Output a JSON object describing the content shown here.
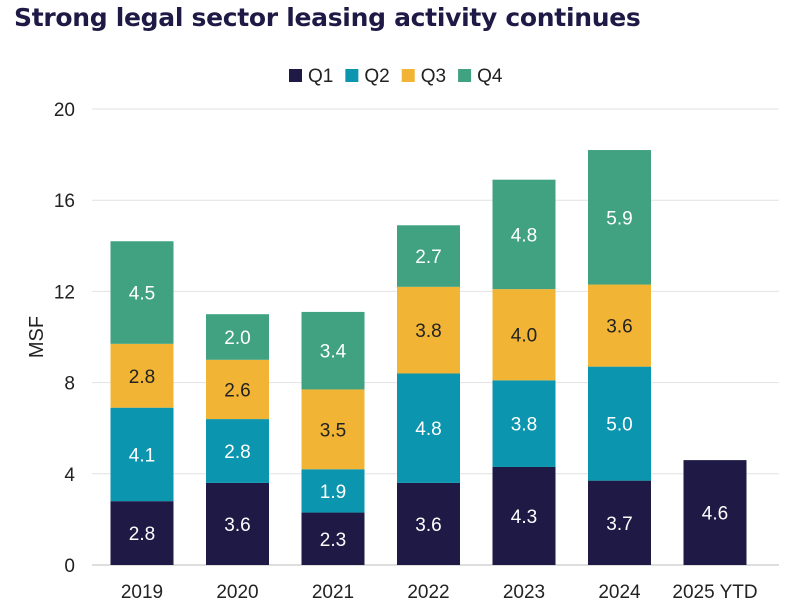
{
  "chart_data": {
    "type": "bar",
    "stacked": true,
    "title": "Strong legal sector leasing activity continues",
    "xlabel": "",
    "ylabel": "MSF",
    "ylim": [
      0,
      20
    ],
    "yticks": [
      "0",
      "4",
      "8",
      "12",
      "16",
      "20"
    ],
    "grid": true,
    "legend_position": "top-center",
    "categories": [
      "2019",
      "2020",
      "2021",
      "2022",
      "2023",
      "2024",
      "2025 YTD"
    ],
    "series": [
      {
        "name": "Q1",
        "color": "#1e1a45",
        "label_color": "#ffffff",
        "values": [
          2.8,
          3.6,
          2.3,
          3.6,
          4.3,
          3.7,
          4.6
        ],
        "labels": [
          "2.8",
          "3.6",
          "2.3",
          "3.6",
          "4.3",
          "3.7",
          "4.6"
        ]
      },
      {
        "name": "Q2",
        "color": "#0b95ae",
        "label_color": "#ffffff",
        "values": [
          4.1,
          2.8,
          1.9,
          4.8,
          3.8,
          5.0,
          null
        ],
        "labels": [
          "4.1",
          "2.8",
          "1.9",
          "4.8",
          "3.8",
          "5.0",
          ""
        ]
      },
      {
        "name": "Q3",
        "color": "#f1b434",
        "label_color": "#222222",
        "values": [
          2.8,
          2.6,
          3.5,
          3.8,
          4.0,
          3.6,
          null
        ],
        "labels": [
          "2.8",
          "2.6",
          "3.5",
          "3.8",
          "4.0",
          "3.6",
          ""
        ]
      },
      {
        "name": "Q4",
        "color": "#40a280",
        "label_color": "#ffffff",
        "values": [
          4.5,
          2.0,
          3.4,
          2.7,
          4.8,
          5.9,
          null
        ],
        "labels": [
          "4.5",
          "2.0",
          "3.4",
          "2.7",
          "4.8",
          "5.9",
          ""
        ]
      }
    ]
  }
}
